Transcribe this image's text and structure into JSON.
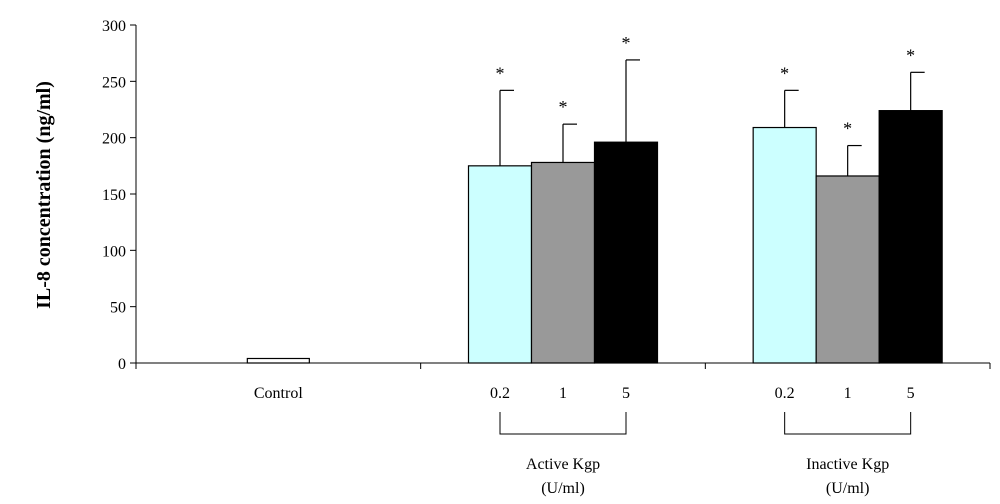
{
  "chart_data": {
    "type": "bar",
    "title": "",
    "xlabel": "",
    "ylabel": "IL-8 concentration (ng/ml)",
    "ylim": [
      0,
      300
    ],
    "yticks": [
      0,
      50,
      100,
      150,
      200,
      250,
      300
    ],
    "grid": false,
    "groups": [
      {
        "id": "control",
        "label": "Control",
        "bars": [
          {
            "label": "",
            "value": 4,
            "error": 0,
            "significant": false,
            "color": "#ffffff"
          }
        ]
      },
      {
        "id": "active",
        "label": [
          "Active Kgp",
          "(U/ml)"
        ],
        "bars": [
          {
            "label": "0.2",
            "value": 175,
            "error": 67,
            "significant": true,
            "color": "#ccffff"
          },
          {
            "label": "1",
            "value": 178,
            "error": 34,
            "significant": true,
            "color": "#999999"
          },
          {
            "label": "5",
            "value": 196,
            "error": 73,
            "significant": true,
            "color": "#000000"
          }
        ]
      },
      {
        "id": "inactive",
        "label": [
          "Inactive Kgp",
          "(U/ml)"
        ],
        "bars": [
          {
            "label": "0.2",
            "value": 209,
            "error": 33,
            "significant": true,
            "color": "#ccffff"
          },
          {
            "label": "1",
            "value": 166,
            "error": 27,
            "significant": true,
            "color": "#999999"
          },
          {
            "label": "5",
            "value": 224,
            "error": 34,
            "significant": true,
            "color": "#000000"
          }
        ]
      }
    ],
    "significance_marker": "*"
  }
}
